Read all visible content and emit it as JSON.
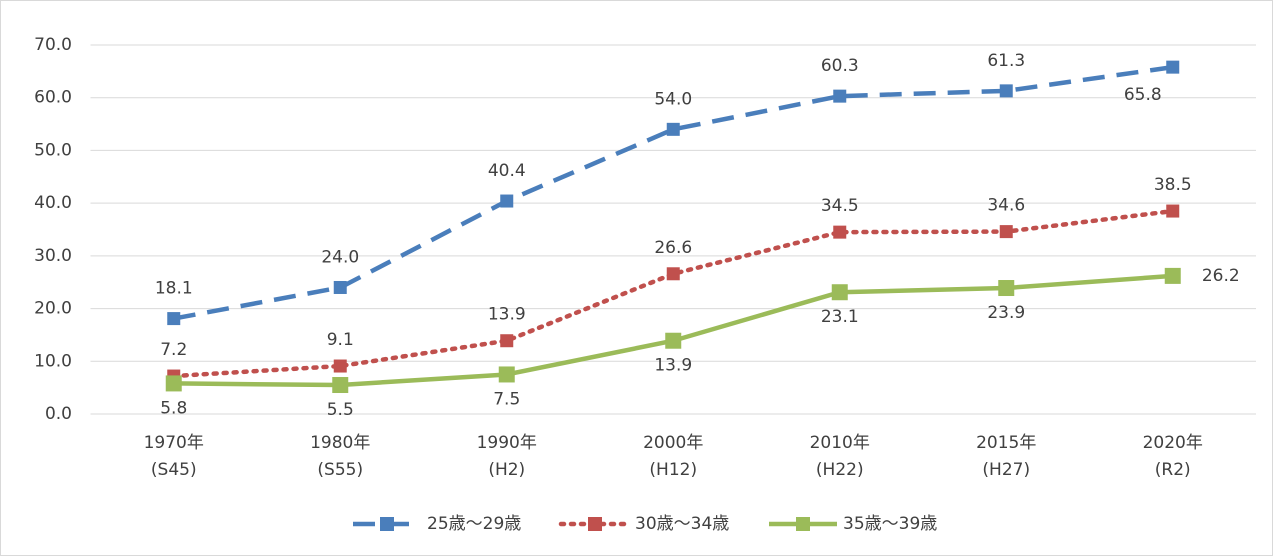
{
  "chart_data": {
    "type": "line",
    "categories": [
      "1970年\n(S45)",
      "1980年\n(S55)",
      "1990年\n(H2)",
      "2000年\n(H12)",
      "2010年\n(H22)",
      "2015年\n(H27)",
      "2020年\n(R2)"
    ],
    "series": [
      {
        "name": "25歳～29歳",
        "color": "#4a7ebb",
        "dash": "dashed",
        "values": [
          18.1,
          24.0,
          40.4,
          54.0,
          60.3,
          61.3,
          65.8
        ],
        "value_labels": [
          "18.1",
          "24.0",
          "40.4",
          "54.0",
          "60.3",
          "61.3",
          "65.8"
        ]
      },
      {
        "name": "30歳～34歳",
        "color": "#c0504d",
        "dash": "dotted",
        "values": [
          7.2,
          9.1,
          13.9,
          26.6,
          34.5,
          34.6,
          38.5
        ],
        "value_labels": [
          "7.2",
          "9.1",
          "13.9",
          "26.6",
          "34.5",
          "34.6",
          "38.5"
        ]
      },
      {
        "name": "35歳～39歳",
        "color": "#9bbb59",
        "dash": "solid",
        "values": [
          5.8,
          5.5,
          7.5,
          13.9,
          23.1,
          23.9,
          26.2
        ],
        "value_labels": [
          "5.8",
          "5.5",
          "7.5",
          "13.9",
          "23.1",
          "23.9",
          "26.2"
        ]
      }
    ],
    "ylim": [
      0,
      70
    ],
    "yticks": [
      {
        "value": 0,
        "label": "0.0"
      },
      {
        "value": 10,
        "label": "10.0"
      },
      {
        "value": 20,
        "label": "20.0"
      },
      {
        "value": 30,
        "label": "30.0"
      },
      {
        "value": 40,
        "label": "40.0"
      },
      {
        "value": 50,
        "label": "50.0"
      },
      {
        "value": 60,
        "label": "60.0"
      },
      {
        "value": 70,
        "label": "70.0"
      }
    ],
    "grid": true,
    "legend": "bottom"
  }
}
